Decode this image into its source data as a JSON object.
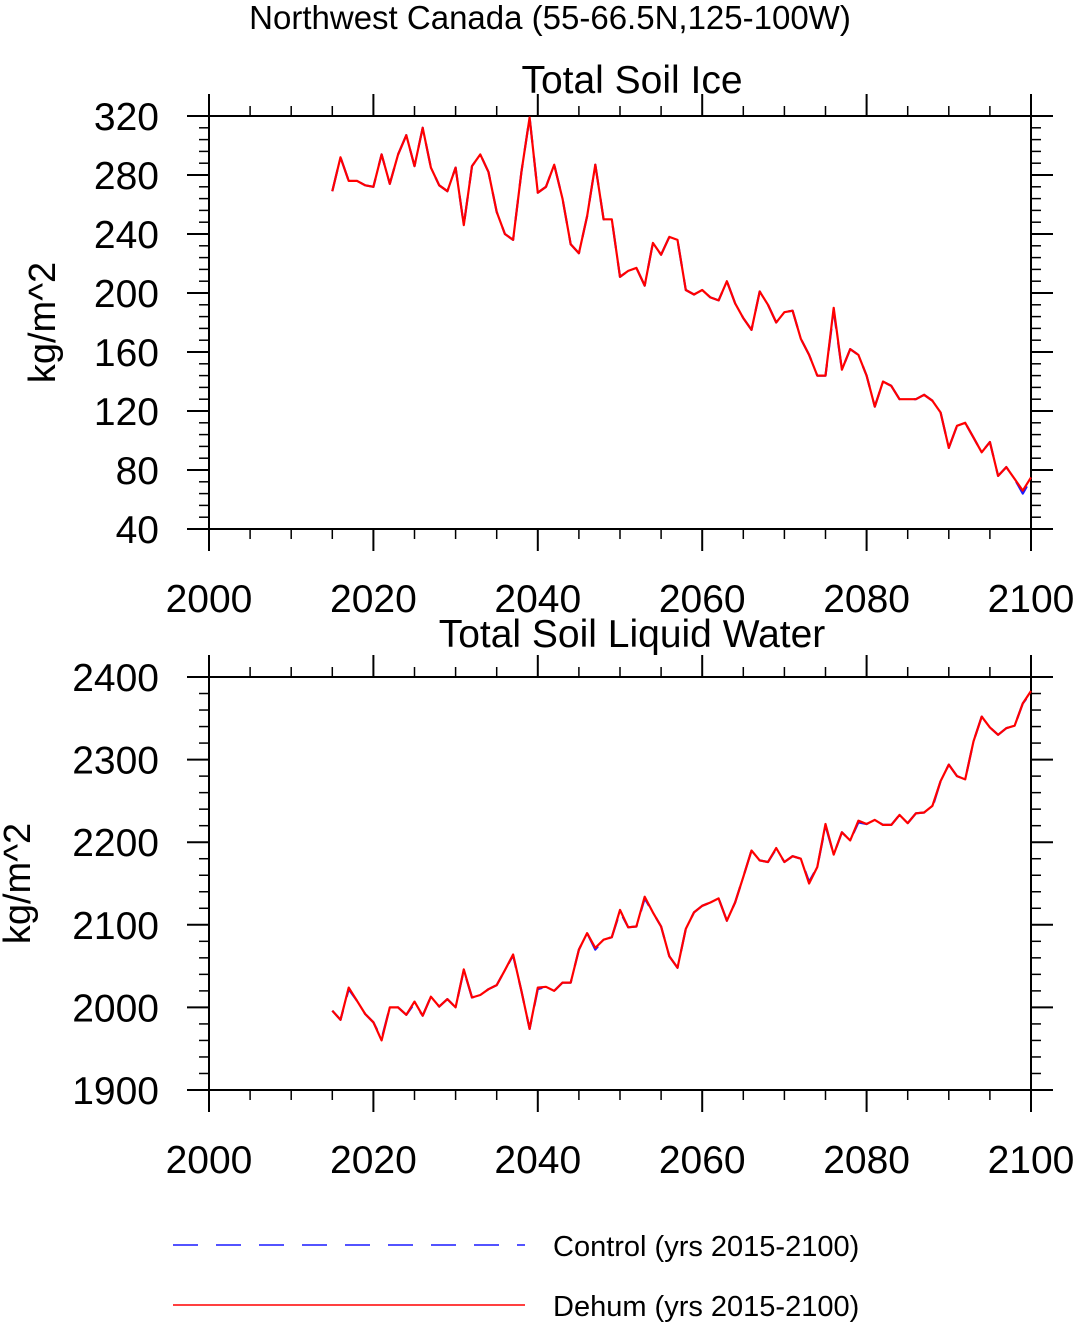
{
  "figure": {
    "suptitle": "Northwest Canada (55-66.5N,125-100W)"
  },
  "legend": {
    "items": [
      {
        "label": "Control (yrs 2015-2100)",
        "color": "#1a1aff",
        "style": "dashed"
      },
      {
        "label": "Dehum (yrs 2015-2100)",
        "color": "#ff0000",
        "style": "solid"
      }
    ]
  },
  "chart_data": [
    {
      "type": "line",
      "title": "Total Soil Ice",
      "ylabel": "kg/m^2",
      "xlim": [
        2000,
        2100
      ],
      "ylim": [
        40,
        320
      ],
      "xticks": [
        2000,
        2020,
        2040,
        2060,
        2080,
        2100
      ],
      "yticks": [
        40,
        80,
        120,
        160,
        200,
        240,
        280,
        320
      ],
      "x_start": 2015,
      "series": [
        {
          "name": "Control (yrs 2015-2100)",
          "values": [
            269,
            292,
            276,
            276,
            273,
            272,
            294,
            274,
            294,
            307,
            286,
            312,
            285,
            273,
            269,
            285,
            246,
            286,
            294,
            282,
            255,
            240,
            236,
            282,
            319,
            268,
            272,
            287,
            264,
            233,
            227,
            252,
            287,
            250,
            250,
            211,
            215,
            217,
            205,
            234,
            226,
            238,
            236,
            202,
            199,
            202,
            197,
            195,
            208,
            193,
            183,
            175,
            201,
            192,
            180,
            187,
            188,
            169,
            158,
            144,
            144,
            188,
            148,
            162,
            158,
            144,
            123,
            140,
            137,
            128,
            128,
            128,
            131,
            127,
            119,
            95,
            110,
            112,
            102,
            92,
            99,
            76,
            82,
            74,
            64,
            74
          ]
        },
        {
          "name": "Dehum (yrs 2015-2100)",
          "values": [
            269,
            292,
            276,
            276,
            273,
            272,
            294,
            274,
            294,
            307,
            286,
            312,
            285,
            273,
            269,
            285,
            246,
            286,
            294,
            282,
            255,
            240,
            236,
            282,
            319,
            268,
            272,
            287,
            264,
            233,
            227,
            252,
            287,
            250,
            250,
            211,
            215,
            217,
            205,
            234,
            226,
            238,
            236,
            202,
            199,
            202,
            197,
            195,
            208,
            193,
            183,
            175,
            201,
            192,
            180,
            187,
            188,
            169,
            158,
            144,
            144,
            190,
            148,
            162,
            158,
            144,
            123,
            140,
            137,
            128,
            128,
            128,
            131,
            127,
            119,
            95,
            110,
            112,
            102,
            92,
            99,
            76,
            82,
            74,
            66,
            75
          ]
        }
      ]
    },
    {
      "type": "line",
      "title": "Total Soil Liquid Water",
      "ylabel": "kg/m^2",
      "xlim": [
        2000,
        2100
      ],
      "ylim": [
        1900,
        2400
      ],
      "xticks": [
        2000,
        2020,
        2040,
        2060,
        2080,
        2100
      ],
      "yticks": [
        1900,
        2000,
        2100,
        2200,
        2300,
        2400
      ],
      "x_start": 2015,
      "series": [
        {
          "name": "Control (yrs 2015-2100)",
          "values": [
            1996,
            1985,
            2022,
            2008,
            1992,
            1982,
            1962,
            2000,
            2000,
            1991,
            2005,
            1990,
            2013,
            2001,
            2010,
            2000,
            2045,
            2012,
            2015,
            2022,
            2027,
            2045,
            2063,
            2020,
            1974,
            2022,
            2025,
            2020,
            2030,
            2030,
            2070,
            2090,
            2070,
            2082,
            2085,
            2116,
            2097,
            2098,
            2132,
            2115,
            2098,
            2062,
            2048,
            2095,
            2115,
            2123,
            2127,
            2132,
            2105,
            2127,
            2158,
            2190,
            2178,
            2176,
            2192,
            2176,
            2183,
            2180,
            2152,
            2170,
            2220,
            2185,
            2212,
            2202,
            2224,
            2222,
            2227,
            2221,
            2221,
            2233,
            2223,
            2235,
            2236,
            2242,
            2274,
            2294,
            2280,
            2276,
            2322,
            2352,
            2339,
            2330,
            2338,
            2341,
            2368,
            2381
          ]
        },
        {
          "name": "Dehum (yrs 2015-2100)",
          "values": [
            1996,
            1985,
            2024,
            2008,
            1992,
            1982,
            1960,
            2000,
            2000,
            1991,
            2007,
            1990,
            2013,
            2001,
            2010,
            2000,
            2046,
            2012,
            2015,
            2022,
            2027,
            2045,
            2064,
            2020,
            1974,
            2024,
            2025,
            2020,
            2030,
            2030,
            2070,
            2090,
            2072,
            2082,
            2085,
            2118,
            2097,
            2098,
            2134,
            2115,
            2098,
            2062,
            2048,
            2095,
            2115,
            2123,
            2127,
            2132,
            2105,
            2127,
            2158,
            2190,
            2178,
            2176,
            2193,
            2176,
            2183,
            2180,
            2150,
            2170,
            2222,
            2185,
            2212,
            2202,
            2226,
            2222,
            2227,
            2221,
            2221,
            2233,
            2223,
            2235,
            2236,
            2244,
            2274,
            2294,
            2280,
            2276,
            2322,
            2352,
            2339,
            2330,
            2338,
            2341,
            2368,
            2383
          ]
        }
      ]
    }
  ]
}
